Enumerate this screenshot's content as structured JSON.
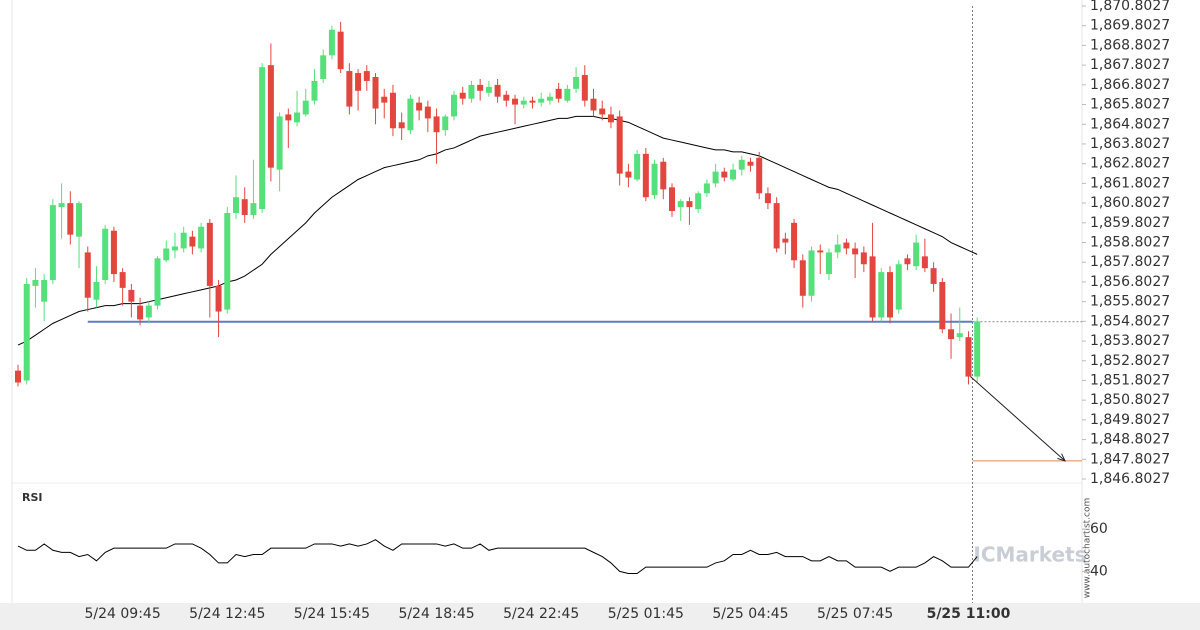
{
  "chart_data": [
    {
      "type": "candlestick",
      "categories": [
        null,
        null,
        null,
        null,
        null,
        null,
        null,
        null,
        null,
        null,
        null,
        null,
        "5/24 09:45",
        null,
        null,
        null,
        null,
        null,
        null,
        null,
        null,
        null,
        null,
        null,
        "5/24 12:45",
        null,
        null,
        null,
        null,
        null,
        null,
        null,
        null,
        null,
        null,
        null,
        "5/24 15:45",
        null,
        null,
        null,
        null,
        null,
        null,
        null,
        null,
        null,
        null,
        null,
        "5/24 18:45",
        null,
        null,
        null,
        null,
        null,
        null,
        null,
        null,
        null,
        null,
        null,
        "5/24 22:45",
        null,
        null,
        null,
        null,
        null,
        null,
        null,
        null,
        null,
        null,
        null,
        "5/25 01:45",
        null,
        null,
        null,
        null,
        null,
        null,
        null,
        null,
        null,
        null,
        null,
        "5/25 04:45",
        null,
        null,
        null,
        null,
        null,
        null,
        null,
        null,
        null,
        null,
        null,
        "5/25 07:45",
        null,
        null,
        null,
        null,
        null,
        null,
        null,
        null,
        null,
        null,
        null,
        null,
        "5/25 11:00",
        null
      ],
      "open": [
        1852.3,
        1851.8,
        1856.6,
        1855.8,
        1856.9,
        1860.6,
        1860.8,
        1859.1,
        1858.3,
        1855.9,
        1856.9,
        1859.4,
        1857.3,
        1856.4,
        1855.6,
        1855.0,
        1855.6,
        1857.9,
        1858.4,
        1858.5,
        1859.1,
        1858.5,
        1859.8,
        1856.6,
        1855.4,
        1860.3,
        1861.0,
        1860.2,
        1860.5,
        1867.8,
        1862.5,
        1865.3,
        1864.9,
        1865.3,
        1866.0,
        1867.1,
        1868.3,
        1869.5,
        1867.5,
        1867.4,
        1867.5,
        1867.2,
        1866.2,
        1866.4,
        1864.9,
        1864.5,
        1865.9,
        1865.7,
        1865.2,
        1864.5,
        1865.2,
        1866.4,
        1866.1,
        1866.8,
        1866.4,
        1866.8,
        1866.3,
        1866.1,
        1865.8,
        1866.0,
        1865.9,
        1866.0,
        1866.6,
        1866.0,
        1866.6,
        1867.3,
        1866.1,
        1865.6,
        1865.3,
        1865.2,
        1862.4,
        1862.0,
        1863.3,
        1861.2,
        1862.9,
        1861.6,
        1860.6,
        1860.9,
        1860.5,
        1861.3,
        1861.8,
        1862.4,
        1862.0,
        1862.5,
        1862.9,
        1863.1,
        1861.3,
        1860.8,
        1859.0,
        1859.8,
        1857.9,
        1856.1,
        1858.4,
        1857.2,
        1858.3,
        1858.8,
        1858.5,
        1858.3,
        1858.1,
        1855.0,
        1857.3,
        1855.4,
        1858.0,
        1857.6,
        1858.1,
        1857.5,
        1856.8,
        1854.4,
        1854.0,
        1854.0,
        1852.0
      ],
      "high": [
        1852.6,
        1857.0,
        1857.5,
        1857.2,
        1861.0,
        1861.8,
        1861.4,
        1860.9,
        1858.6,
        1857.6,
        1859.7,
        1859.6,
        1857.5,
        1856.7,
        1856.0,
        1855.8,
        1858.1,
        1858.9,
        1859.3,
        1859.6,
        1859.4,
        1859.8,
        1860.0,
        1856.9,
        1860.6,
        1862.2,
        1861.6,
        1863.0,
        1867.9,
        1868.9,
        1865.4,
        1865.6,
        1866.5,
        1866.6,
        1867.6,
        1868.6,
        1869.8,
        1870.0,
        1867.9,
        1867.6,
        1867.8,
        1867.4,
        1866.6,
        1866.8,
        1865.4,
        1866.3,
        1866.2,
        1866.0,
        1865.6,
        1865.3,
        1866.5,
        1866.7,
        1867.0,
        1867.1,
        1867.0,
        1867.1,
        1866.5,
        1866.3,
        1866.2,
        1866.2,
        1866.4,
        1866.4,
        1866.9,
        1866.8,
        1867.7,
        1867.8,
        1866.6,
        1866.0,
        1865.7,
        1865.5,
        1862.8,
        1863.5,
        1863.6,
        1863.0,
        1863.1,
        1861.8,
        1861.0,
        1861.1,
        1861.4,
        1862.0,
        1862.8,
        1862.6,
        1862.8,
        1863.2,
        1863.1,
        1863.4,
        1861.6,
        1861.1,
        1859.3,
        1860.0,
        1858.2,
        1858.6,
        1858.7,
        1858.5,
        1859.2,
        1859.0,
        1858.8,
        1858.6,
        1859.8,
        1857.5,
        1857.6,
        1857.9,
        1858.2,
        1859.2,
        1859.0,
        1857.8,
        1857.0,
        1855.2,
        1855.5,
        1854.3,
        1855.0
      ],
      "low": [
        1851.5,
        1851.6,
        1855.5,
        1854.8,
        1856.7,
        1859.0,
        1858.7,
        1857.5,
        1855.3,
        1855.5,
        1856.7,
        1856.8,
        1855.6,
        1855.0,
        1854.6,
        1854.7,
        1855.4,
        1857.8,
        1858.0,
        1858.3,
        1858.2,
        1858.3,
        1855.0,
        1854.0,
        1855.2,
        1860.0,
        1859.8,
        1860.0,
        1860.3,
        1861.9,
        1861.4,
        1863.6,
        1864.7,
        1865.2,
        1865.8,
        1866.9,
        1868.1,
        1867.4,
        1865.3,
        1865.5,
        1866.5,
        1864.8,
        1865.1,
        1864.2,
        1864.0,
        1864.3,
        1865.0,
        1864.4,
        1862.8,
        1864.2,
        1865.0,
        1865.8,
        1865.9,
        1866.0,
        1866.2,
        1865.9,
        1865.7,
        1864.8,
        1865.6,
        1865.6,
        1865.7,
        1865.8,
        1865.9,
        1865.9,
        1866.4,
        1865.7,
        1865.2,
        1865.0,
        1864.6,
        1861.7,
        1861.6,
        1861.9,
        1860.9,
        1861.0,
        1861.0,
        1860.1,
        1859.9,
        1859.7,
        1860.3,
        1861.1,
        1861.6,
        1861.9,
        1861.9,
        1862.2,
        1862.4,
        1861.0,
        1860.5,
        1858.3,
        1858.2,
        1857.5,
        1855.5,
        1855.8,
        1857.2,
        1856.9,
        1858.0,
        1858.2,
        1857.0,
        1857.3,
        1854.8,
        1854.8,
        1854.7,
        1855.2,
        1857.4,
        1857.4,
        1857.3,
        1856.3,
        1854.2,
        1852.9,
        1853.8,
        1851.6,
        1851.7
      ],
      "close": [
        1851.7,
        1856.7,
        1856.9,
        1856.9,
        1860.7,
        1860.8,
        1859.2,
        1860.8,
        1856.0,
        1856.8,
        1859.5,
        1857.2,
        1856.5,
        1855.8,
        1854.9,
        1855.6,
        1858.0,
        1858.5,
        1858.6,
        1859.3,
        1858.6,
        1859.6,
        1856.6,
        1855.3,
        1860.3,
        1861.1,
        1860.2,
        1860.8,
        1867.7,
        1862.6,
        1865.2,
        1865.0,
        1865.4,
        1866.0,
        1867.0,
        1868.3,
        1869.6,
        1867.6,
        1865.7,
        1866.5,
        1867.0,
        1865.6,
        1865.9,
        1864.6,
        1864.6,
        1866.1,
        1865.5,
        1865.1,
        1864.4,
        1865.2,
        1866.3,
        1866.1,
        1866.8,
        1866.5,
        1866.7,
        1866.2,
        1866.0,
        1865.8,
        1866.0,
        1865.9,
        1866.1,
        1866.2,
        1866.1,
        1866.6,
        1867.2,
        1866.0,
        1865.5,
        1865.3,
        1864.9,
        1862.3,
        1862.1,
        1863.3,
        1861.1,
        1862.8,
        1861.5,
        1860.4,
        1860.9,
        1860.6,
        1861.3,
        1861.8,
        1862.4,
        1862.1,
        1862.5,
        1863.0,
        1862.7,
        1861.3,
        1860.8,
        1858.5,
        1858.8,
        1857.9,
        1856.1,
        1858.4,
        1858.3,
        1858.3,
        1858.7,
        1858.5,
        1858.2,
        1857.7,
        1855.0,
        1857.3,
        1855.0,
        1857.7,
        1857.7,
        1858.8,
        1857.5,
        1856.7,
        1854.4,
        1853.9,
        1854.2,
        1852.0,
        1854.8
      ],
      "up_color": "#56e07c",
      "down_color": "#e2463f",
      "moving_average": {
        "color": "#000000",
        "values": [
          1853.6,
          1853.8,
          1854.1,
          1854.4,
          1854.7,
          1854.9,
          1855.1,
          1855.3,
          1855.4,
          1855.5,
          1855.6,
          1855.6,
          1855.7,
          1855.7,
          1855.7,
          1855.8,
          1855.9,
          1856.0,
          1856.1,
          1856.2,
          1856.3,
          1856.4,
          1856.5,
          1856.6,
          1856.8,
          1856.9,
          1857.1,
          1857.4,
          1857.7,
          1858.2,
          1858.6,
          1859.0,
          1859.4,
          1859.8,
          1860.3,
          1860.7,
          1861.1,
          1861.4,
          1861.7,
          1862.0,
          1862.2,
          1862.4,
          1862.6,
          1862.7,
          1862.8,
          1862.9,
          1863.0,
          1863.2,
          1863.3,
          1863.5,
          1863.6,
          1863.8,
          1864.0,
          1864.2,
          1864.3,
          1864.4,
          1864.5,
          1864.6,
          1864.7,
          1864.8,
          1864.9,
          1865.0,
          1865.1,
          1865.1,
          1865.2,
          1865.2,
          1865.2,
          1865.1,
          1865.1,
          1865.0,
          1864.9,
          1864.7,
          1864.5,
          1864.3,
          1864.1,
          1864.0,
          1863.9,
          1863.8,
          1863.7,
          1863.6,
          1863.5,
          1863.5,
          1863.4,
          1863.4,
          1863.3,
          1863.2,
          1863.0,
          1862.8,
          1862.6,
          1862.4,
          1862.2,
          1862.0,
          1861.8,
          1861.6,
          1861.5,
          1861.3,
          1861.1,
          1860.9,
          1860.7,
          1860.5,
          1860.3,
          1860.1,
          1859.9,
          1859.7,
          1859.5,
          1859.3,
          1859.1,
          1858.8,
          1858.6,
          1858.4,
          1858.2
        ]
      },
      "support": {
        "value": 1854.78,
        "color": "#5b7fc0"
      },
      "target": {
        "value": 1847.72,
        "color": "#d98a50"
      },
      "ylim": [
        1846.8027,
        1870.8027
      ],
      "yticks": [
        {
          "value": 1870.8027,
          "label": "1,870.8027"
        },
        {
          "value": 1869.8027,
          "label": "1,869.8027"
        },
        {
          "value": 1868.8027,
          "label": "1,868.8027"
        },
        {
          "value": 1867.8027,
          "label": "1,867.8027"
        },
        {
          "value": 1866.8027,
          "label": "1,866.8027"
        },
        {
          "value": 1865.8027,
          "label": "1,865.8027"
        },
        {
          "value": 1864.8027,
          "label": "1,864.8027"
        },
        {
          "value": 1863.8027,
          "label": "1,863.8027"
        },
        {
          "value": 1862.8027,
          "label": "1,862.8027"
        },
        {
          "value": 1861.8027,
          "label": "1,861.8027"
        },
        {
          "value": 1860.8027,
          "label": "1,860.8027"
        },
        {
          "value": 1859.8027,
          "label": "1,859.8027"
        },
        {
          "value": 1858.8027,
          "label": "1,858.8027"
        },
        {
          "value": 1857.8027,
          "label": "1,857.8027"
        },
        {
          "value": 1856.8027,
          "label": "1,856.8027"
        },
        {
          "value": 1855.8027,
          "label": "1,855.8027"
        },
        {
          "value": 1854.8027,
          "label": "1,854.8027"
        },
        {
          "value": 1853.8027,
          "label": "1,853.8027"
        },
        {
          "value": 1852.8027,
          "label": "1,852.8027"
        },
        {
          "value": 1851.8027,
          "label": "1,851.8027"
        },
        {
          "value": 1850.8027,
          "label": "1,850.8027"
        },
        {
          "value": 1849.8027,
          "label": "1,849.8027"
        },
        {
          "value": 1848.8027,
          "label": "1,848.8027"
        },
        {
          "value": 1847.8027,
          "label": "1,847.8027"
        },
        {
          "value": 1846.8027,
          "label": "1,846.8027"
        }
      ]
    },
    {
      "type": "line",
      "title": "RSI",
      "color": "#000000",
      "values": [
        52,
        50,
        50,
        53,
        50,
        49,
        49,
        47,
        48,
        45,
        49,
        51,
        51,
        51,
        51,
        51,
        51,
        51,
        53,
        53,
        53,
        51,
        48,
        44,
        44,
        48,
        47,
        48,
        48,
        51,
        51,
        51,
        51,
        51,
        53,
        53,
        53,
        52,
        53,
        52,
        53,
        55,
        52,
        50,
        53,
        53,
        53,
        53,
        53,
        52,
        53,
        51,
        51,
        53,
        50,
        51,
        51,
        51,
        51,
        51,
        51,
        51,
        51,
        51,
        51,
        51,
        49,
        47,
        44,
        40,
        39,
        39,
        42,
        42,
        42,
        42,
        42,
        42,
        42,
        42,
        44,
        45,
        48,
        48,
        50,
        48,
        48,
        49,
        47,
        47,
        47,
        45,
        45,
        47,
        45,
        45,
        42,
        42,
        42,
        42,
        40,
        42,
        42,
        42,
        44,
        47,
        45,
        42,
        42,
        42,
        47
      ],
      "ylim": [
        25,
        80
      ],
      "yticks": [
        40,
        60
      ]
    }
  ],
  "watermark": "ICMarkets",
  "source": "www.autochartist.com"
}
